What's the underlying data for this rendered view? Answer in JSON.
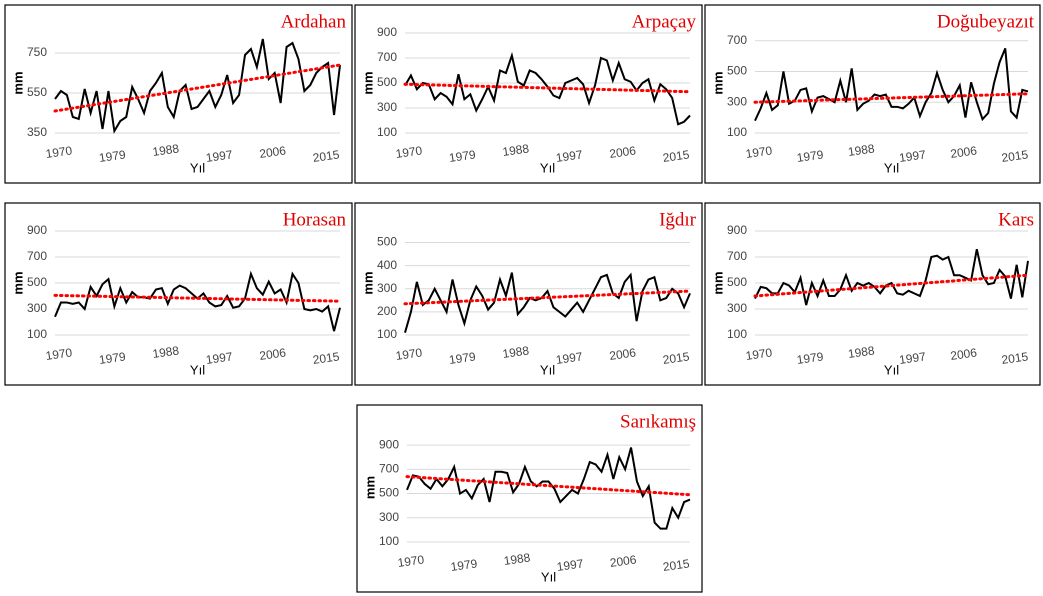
{
  "chart_data": [
    {
      "type": "line",
      "title": "Ardahan",
      "xlabel": "Yıl",
      "ylabel": "mm",
      "color": "#000000",
      "x": [
        1970,
        1971,
        1972,
        1973,
        1974,
        1975,
        1976,
        1977,
        1978,
        1979,
        1980,
        1981,
        1982,
        1983,
        1984,
        1985,
        1986,
        1987,
        1988,
        1989,
        1990,
        1991,
        1992,
        1993,
        1994,
        1995,
        1996,
        1997,
        1998,
        1999,
        2000,
        2001,
        2002,
        2003,
        2004,
        2005,
        2006,
        2007,
        2008,
        2009,
        2010,
        2011,
        2012,
        2013,
        2014,
        2015,
        2016,
        2017,
        2018
      ],
      "values": [
        520,
        560,
        540,
        430,
        420,
        570,
        450,
        560,
        370,
        560,
        360,
        410,
        430,
        580,
        520,
        450,
        560,
        600,
        650,
        480,
        430,
        560,
        590,
        470,
        480,
        520,
        560,
        480,
        540,
        640,
        500,
        540,
        740,
        770,
        680,
        820,
        620,
        650,
        500,
        780,
        800,
        720,
        560,
        590,
        650,
        680,
        700,
        440,
        690
      ],
      "trend": {
        "x": [
          1970,
          2018
        ],
        "values": [
          460,
          690
        ],
        "color": "#ff0000"
      },
      "xlim": [
        1970,
        2018
      ],
      "xticks": [
        1970,
        1979,
        1988,
        1997,
        2006,
        2015
      ],
      "ylim": [
        350,
        850
      ],
      "yticks": [
        350,
        550,
        750
      ],
      "grid": true
    },
    {
      "type": "line",
      "title": "Arpaçay",
      "xlabel": "Yıl",
      "ylabel": "mm",
      "color": "#000000",
      "x": [
        1970,
        1971,
        1972,
        1973,
        1974,
        1975,
        1976,
        1977,
        1978,
        1979,
        1980,
        1981,
        1982,
        1983,
        1984,
        1985,
        1986,
        1987,
        1988,
        1989,
        1990,
        1991,
        1992,
        1993,
        1994,
        1995,
        1996,
        1997,
        1998,
        1999,
        2000,
        2001,
        2002,
        2003,
        2004,
        2005,
        2006,
        2007,
        2008,
        2009,
        2010,
        2011,
        2012,
        2013,
        2014,
        2015,
        2016,
        2017,
        2018
      ],
      "values": [
        480,
        560,
        450,
        500,
        490,
        370,
        420,
        390,
        330,
        570,
        370,
        410,
        280,
        370,
        470,
        360,
        600,
        580,
        720,
        510,
        480,
        600,
        580,
        530,
        470,
        400,
        380,
        500,
        520,
        540,
        490,
        340,
        480,
        700,
        680,
        520,
        660,
        530,
        510,
        440,
        500,
        530,
        360,
        490,
        450,
        380,
        170,
        190,
        240
      ],
      "trend": {
        "x": [
          1970,
          2018
        ],
        "values": [
          490,
          430
        ],
        "color": "#ff0000"
      },
      "xlim": [
        1970,
        2018
      ],
      "xticks": [
        1970,
        1979,
        1988,
        1997,
        2006,
        2015
      ],
      "ylim": [
        100,
        900
      ],
      "yticks": [
        100,
        300,
        500,
        700,
        900
      ],
      "grid": true
    },
    {
      "type": "line",
      "title": "Doğubeyazıt",
      "xlabel": "Yıl",
      "ylabel": "mm",
      "color": "#000000",
      "x": [
        1970,
        1971,
        1972,
        1973,
        1974,
        1975,
        1976,
        1977,
        1978,
        1979,
        1980,
        1981,
        1982,
        1983,
        1984,
        1985,
        1986,
        1987,
        1988,
        1989,
        1990,
        1991,
        1992,
        1993,
        1994,
        1995,
        1996,
        1997,
        1998,
        1999,
        2000,
        2001,
        2002,
        2003,
        2004,
        2005,
        2006,
        2007,
        2008,
        2009,
        2010,
        2011,
        2012,
        2013,
        2014,
        2015,
        2016,
        2017,
        2018
      ],
      "values": [
        180,
        260,
        360,
        250,
        280,
        500,
        290,
        310,
        380,
        390,
        240,
        330,
        340,
        320,
        300,
        440,
        300,
        520,
        250,
        290,
        310,
        350,
        340,
        350,
        270,
        270,
        260,
        290,
        330,
        210,
        300,
        360,
        490,
        380,
        300,
        340,
        410,
        200,
        430,
        300,
        190,
        230,
        420,
        560,
        650,
        240,
        200,
        380,
        370
      ],
      "trend": {
        "x": [
          1970,
          2018
        ],
        "values": [
          300,
          355
        ],
        "color": "#ff0000"
      },
      "xlim": [
        1970,
        2018
      ],
      "xticks": [
        1970,
        1979,
        1988,
        1997,
        2006,
        2015
      ],
      "ylim": [
        100,
        750
      ],
      "yticks": [
        100,
        300,
        500,
        700
      ],
      "grid": true
    },
    {
      "type": "line",
      "title": "Horasan",
      "xlabel": "Yıl",
      "ylabel": "mm",
      "color": "#000000",
      "x": [
        1970,
        1971,
        1972,
        1973,
        1974,
        1975,
        1976,
        1977,
        1978,
        1979,
        1980,
        1981,
        1982,
        1983,
        1984,
        1985,
        1986,
        1987,
        1988,
        1989,
        1990,
        1991,
        1992,
        1993,
        1994,
        1995,
        1996,
        1997,
        1998,
        1999,
        2000,
        2001,
        2002,
        2003,
        2004,
        2005,
        2006,
        2007,
        2008,
        2009,
        2010,
        2011,
        2012,
        2013,
        2014,
        2015,
        2016,
        2017,
        2018
      ],
      "values": [
        240,
        350,
        350,
        340,
        350,
        300,
        470,
        400,
        490,
        530,
        320,
        460,
        350,
        430,
        390,
        390,
        380,
        450,
        460,
        340,
        450,
        480,
        460,
        420,
        380,
        420,
        350,
        320,
        330,
        400,
        310,
        320,
        380,
        570,
        460,
        410,
        510,
        420,
        450,
        350,
        570,
        500,
        300,
        290,
        300,
        280,
        320,
        130,
        310
      ],
      "trend": {
        "x": [
          1970,
          2018
        ],
        "values": [
          405,
          360
        ],
        "color": "#ff0000"
      },
      "xlim": [
        1970,
        2018
      ],
      "xticks": [
        1970,
        1979,
        1988,
        1997,
        2006,
        2015
      ],
      "ylim": [
        100,
        900
      ],
      "yticks": [
        100,
        300,
        500,
        700,
        900
      ],
      "grid": true
    },
    {
      "type": "line",
      "title": "Iğdır",
      "xlabel": "Yıl",
      "ylabel": "mm",
      "color": "#000000",
      "x": [
        1970,
        1971,
        1972,
        1973,
        1974,
        1975,
        1976,
        1977,
        1978,
        1979,
        1980,
        1981,
        1982,
        1983,
        1984,
        1985,
        1986,
        1987,
        1988,
        1989,
        1990,
        1991,
        1992,
        1993,
        1994,
        1995,
        1996,
        1997,
        1998,
        1999,
        2000,
        2001,
        2002,
        2003,
        2004,
        2005,
        2006,
        2007,
        2008,
        2009,
        2010,
        2011,
        2012,
        2013,
        2014,
        2015,
        2016,
        2017,
        2018
      ],
      "values": [
        110,
        200,
        330,
        230,
        250,
        300,
        250,
        200,
        340,
        230,
        150,
        250,
        310,
        270,
        210,
        240,
        340,
        270,
        370,
        190,
        220,
        260,
        250,
        260,
        290,
        220,
        200,
        180,
        210,
        240,
        200,
        250,
        300,
        350,
        360,
        280,
        260,
        330,
        360,
        160,
        290,
        340,
        350,
        250,
        260,
        300,
        280,
        220,
        280
      ],
      "trend": {
        "x": [
          1970,
          2018
        ],
        "values": [
          235,
          290
        ],
        "color": "#ff0000"
      },
      "xlim": [
        1970,
        2018
      ],
      "xticks": [
        1970,
        1979,
        1988,
        1997,
        2006,
        2015
      ],
      "ylim": [
        100,
        550
      ],
      "yticks": [
        100,
        200,
        300,
        400,
        500
      ],
      "grid": true
    },
    {
      "type": "line",
      "title": "Kars",
      "xlabel": "Yıl",
      "ylabel": "mm",
      "color": "#000000",
      "x": [
        1970,
        1971,
        1972,
        1973,
        1974,
        1975,
        1976,
        1977,
        1978,
        1979,
        1980,
        1981,
        1982,
        1983,
        1984,
        1985,
        1986,
        1987,
        1988,
        1989,
        1990,
        1991,
        1992,
        1993,
        1994,
        1995,
        1996,
        1997,
        1998,
        1999,
        2000,
        2001,
        2002,
        2003,
        2004,
        2005,
        2006,
        2007,
        2008,
        2009,
        2010,
        2011,
        2012,
        2013,
        2014,
        2015,
        2016,
        2017,
        2018
      ],
      "values": [
        380,
        470,
        460,
        420,
        420,
        500,
        480,
        430,
        540,
        330,
        500,
        400,
        520,
        400,
        400,
        450,
        560,
        440,
        500,
        480,
        500,
        470,
        420,
        480,
        500,
        420,
        410,
        440,
        420,
        400,
        520,
        700,
        710,
        680,
        700,
        560,
        560,
        540,
        520,
        760,
        560,
        490,
        500,
        600,
        550,
        380,
        640,
        390,
        670
      ],
      "trend": {
        "x": [
          1970,
          2018
        ],
        "values": [
          400,
          560
        ],
        "color": "#ff0000"
      },
      "xlim": [
        1970,
        2018
      ],
      "xticks": [
        1970,
        1979,
        1988,
        1997,
        2006,
        2015
      ],
      "ylim": [
        100,
        900
      ],
      "yticks": [
        100,
        300,
        500,
        700,
        900
      ],
      "grid": true
    },
    {
      "type": "line",
      "title": "Sarıkamış",
      "xlabel": "Yıl",
      "ylabel": "mm",
      "color": "#000000",
      "x": [
        1970,
        1971,
        1972,
        1973,
        1974,
        1975,
        1976,
        1977,
        1978,
        1979,
        1980,
        1981,
        1982,
        1983,
        1984,
        1985,
        1986,
        1987,
        1988,
        1989,
        1990,
        1991,
        1992,
        1993,
        1994,
        1995,
        1996,
        1997,
        1998,
        1999,
        2000,
        2001,
        2002,
        2003,
        2004,
        2005,
        2006,
        2007,
        2008,
        2009,
        2010,
        2011,
        2012,
        2013,
        2014,
        2015,
        2016,
        2017,
        2018
      ],
      "values": [
        530,
        650,
        640,
        580,
        540,
        620,
        560,
        620,
        720,
        500,
        530,
        460,
        570,
        620,
        430,
        680,
        680,
        670,
        510,
        580,
        720,
        600,
        560,
        600,
        600,
        540,
        430,
        480,
        530,
        500,
        620,
        760,
        740,
        680,
        820,
        620,
        800,
        700,
        880,
        600,
        480,
        560,
        260,
        210,
        210,
        380,
        300,
        430,
        450
      ],
      "trend": {
        "x": [
          1970,
          2018
        ],
        "values": [
          640,
          490
        ],
        "color": "#ff0000"
      },
      "xlim": [
        1970,
        2018
      ],
      "xticks": [
        1970,
        1979,
        1988,
        1997,
        2006,
        2015
      ],
      "ylim": [
        100,
        1000
      ],
      "yticks": [
        100,
        300,
        500,
        700,
        900
      ],
      "grid": true
    }
  ]
}
